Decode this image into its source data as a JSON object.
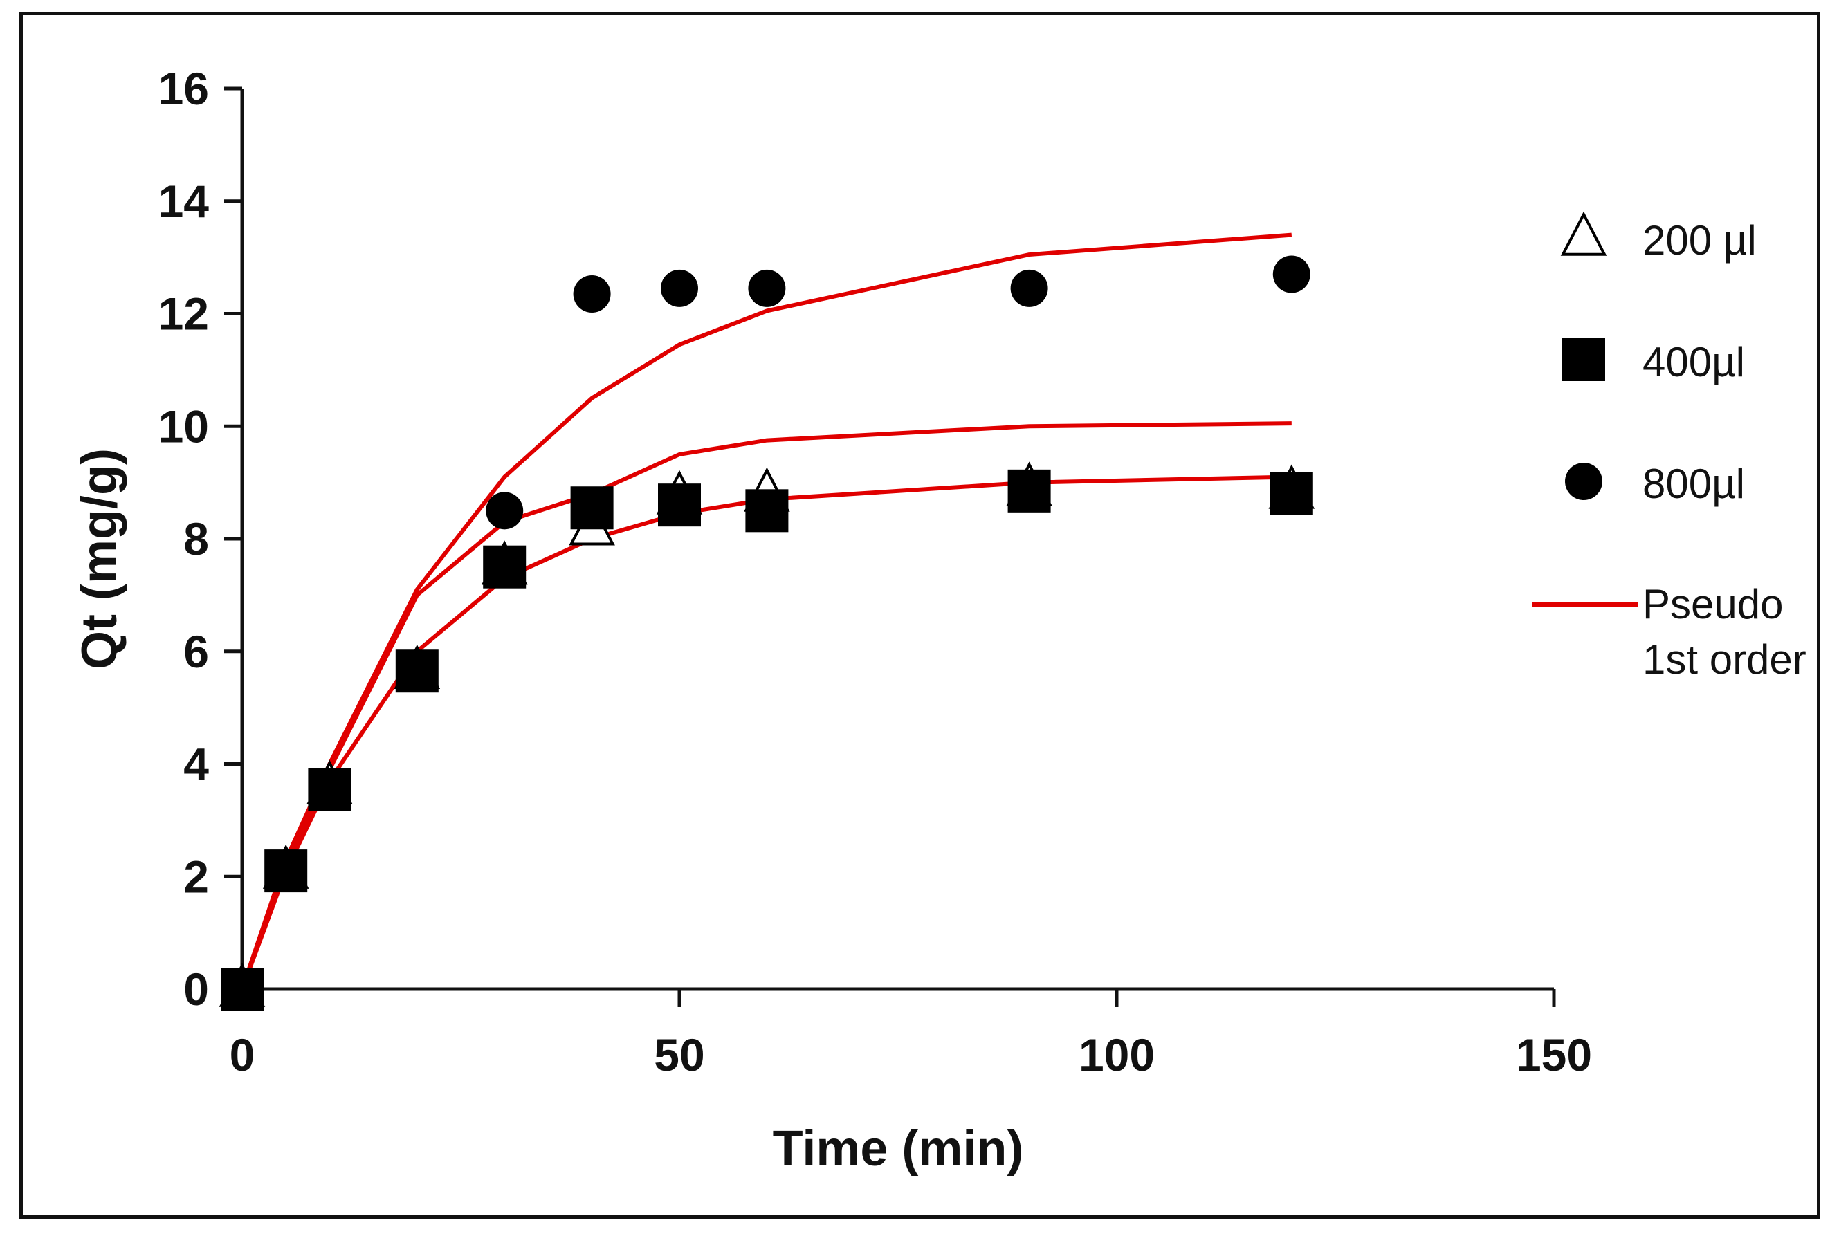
{
  "chart_data": {
    "type": "scatter",
    "title": "",
    "xlabel": "Time (min)",
    "ylabel": "Qt (mg/g)",
    "xlim": [
      0,
      150
    ],
    "ylim": [
      0,
      16
    ],
    "xticks": [
      0,
      50,
      100,
      150
    ],
    "yticks": [
      0,
      2,
      4,
      6,
      8,
      10,
      12,
      14,
      16
    ],
    "grid": false,
    "legend_position": "right",
    "series": [
      {
        "name": "200 µl",
        "marker": "triangle-open",
        "x": [
          0,
          5,
          10,
          20,
          30,
          40,
          50,
          60,
          90,
          120
        ],
        "y": [
          0,
          2.1,
          3.6,
          5.65,
          7.5,
          8.2,
          8.75,
          8.8,
          8.9,
          8.85
        ]
      },
      {
        "name": "400µl",
        "marker": "square-filled",
        "x": [
          0,
          5,
          10,
          20,
          30,
          40,
          50,
          60,
          90,
          120
        ],
        "y": [
          0,
          2.1,
          3.55,
          5.65,
          7.5,
          8.55,
          8.6,
          8.5,
          8.85,
          8.8
        ]
      },
      {
        "name": "800µl",
        "marker": "circle-filled",
        "x": [
          30,
          40,
          50,
          60,
          90,
          120
        ],
        "y": [
          8.5,
          12.35,
          12.45,
          12.45,
          12.45,
          12.7
        ]
      }
    ],
    "fit_lines": [
      {
        "name": "Pseudo 1st order",
        "x": [
          0,
          5,
          10,
          20,
          30,
          40,
          50,
          60,
          90,
          120
        ],
        "y": [
          0,
          2.1,
          3.7,
          6.0,
          7.3,
          8.0,
          8.45,
          8.7,
          9.0,
          9.1
        ]
      },
      {
        "name": "Pseudo 1st order",
        "x": [
          0,
          5,
          10,
          20,
          30,
          40,
          50,
          60,
          90,
          120
        ],
        "y": [
          0,
          2.2,
          3.9,
          7.0,
          8.3,
          8.8,
          9.5,
          9.75,
          10.0,
          10.05
        ]
      },
      {
        "name": "Pseudo 1st order",
        "x": [
          0,
          5,
          10,
          20,
          30,
          40,
          50,
          60,
          90,
          120
        ],
        "y": [
          0,
          2.3,
          4.0,
          7.1,
          9.1,
          10.5,
          11.45,
          12.05,
          13.05,
          13.4
        ]
      }
    ],
    "legend": [
      {
        "label": "200 µl",
        "marker": "triangle-open"
      },
      {
        "label": "400µl",
        "marker": "square-filled"
      },
      {
        "label": "800µl",
        "marker": "circle-filled"
      },
      {
        "label_lines": [
          "Pseudo",
          "1st order"
        ],
        "marker": "line"
      }
    ]
  },
  "colors": {
    "fit_line": "#e00000",
    "marker": "#000000",
    "axis": "#111111"
  }
}
